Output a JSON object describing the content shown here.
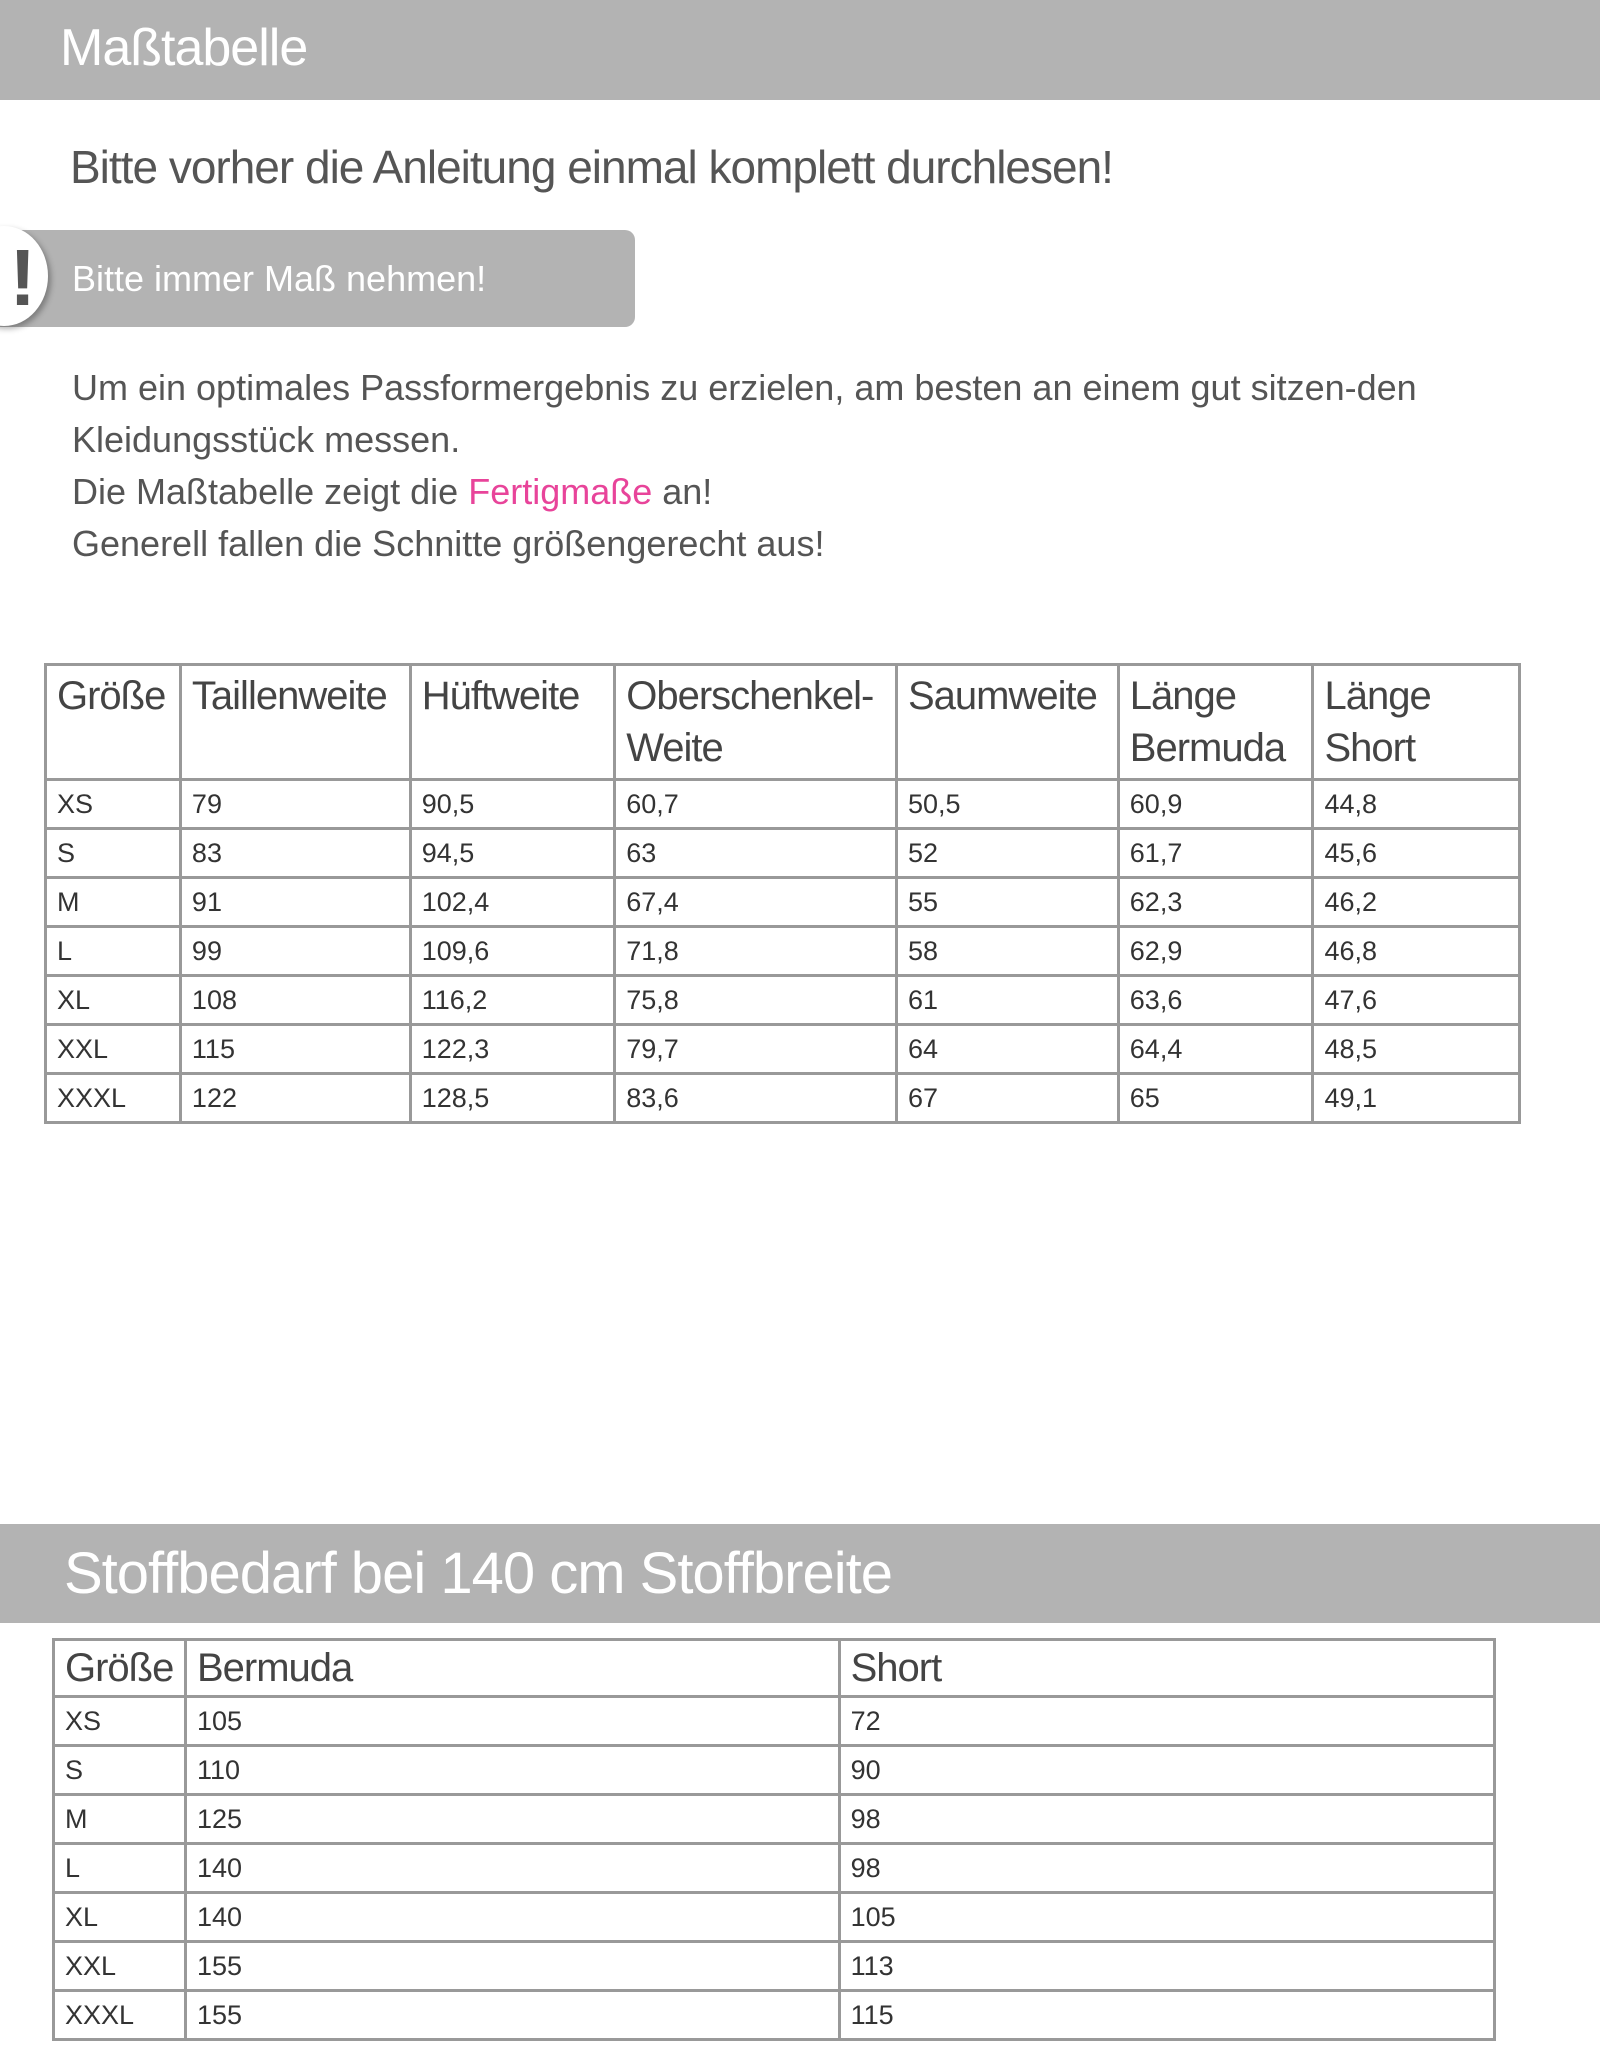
{
  "header": {
    "title": "Maßtabelle"
  },
  "intro": "Bitte  vorher die Anleitung einmal komplett durchlesen!",
  "callout": {
    "icon": "exclamation-icon",
    "text": "Bitte immer Maß nehmen!"
  },
  "paragraph": {
    "line1": "Um ein optimales Passformergebnis zu erzielen, am besten an einem gut sitzen-den Kleidungsstück messen.",
    "line2_pre": "Die Maßtabelle zeigt die ",
    "line2_highlight": "Fertigmaße",
    "line2_post": " an!",
    "line3": "Generell fallen die Schnitte größengerecht aus!",
    "highlight_color": "#e8449a"
  },
  "size_table": {
    "headers": [
      "Größe",
      "Taillenweite",
      "Hüftweite",
      "Oberschenkel-Weite",
      "Saumweite",
      "Länge Bermuda",
      "Länge Short"
    ],
    "rows": [
      [
        "XS",
        "79",
        "90,5",
        "60,7",
        "50,5",
        "60,9",
        "44,8"
      ],
      [
        "S",
        "83",
        "94,5",
        "63",
        "52",
        "61,7",
        "45,6"
      ],
      [
        "M",
        "91",
        "102,4",
        "67,4",
        "55",
        "62,3",
        "46,2"
      ],
      [
        "L",
        "99",
        "109,6",
        "71,8",
        "58",
        "62,9",
        "46,8"
      ],
      [
        "XL",
        "108",
        "116,2",
        "75,8",
        "61",
        "63,6",
        "47,6"
      ],
      [
        "XXL",
        "115",
        "122,3",
        "79,7",
        "64",
        "64,4",
        "48,5"
      ],
      [
        "XXXL",
        "122",
        "128,5",
        "83,6",
        "67",
        "65",
        "49,1"
      ]
    ]
  },
  "fabric_section": {
    "title": "Stoffbedarf bei 140 cm Stoffbreite"
  },
  "fabric_table": {
    "headers": [
      "Größe",
      "Bermuda",
      "Short"
    ],
    "rows": [
      [
        "XS",
        "105",
        "72"
      ],
      [
        "S",
        "110",
        "90"
      ],
      [
        "M",
        "125",
        "98"
      ],
      [
        "L",
        "140",
        "98"
      ],
      [
        "XL",
        "140",
        "105"
      ],
      [
        "XXL",
        "155",
        "113"
      ],
      [
        "XXXL",
        "155",
        "115"
      ]
    ]
  }
}
